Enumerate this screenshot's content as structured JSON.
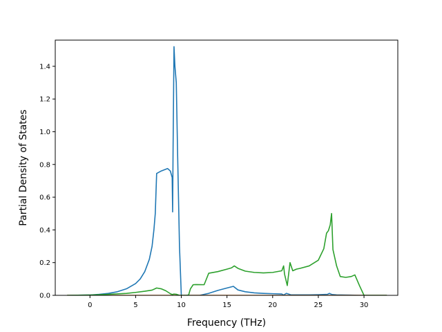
{
  "chart_data": {
    "type": "line",
    "title": "",
    "xlabel": "Frequency (THz)",
    "ylabel": "Partial Density of States",
    "xlim": [
      -3.8,
      33.7
    ],
    "ylim": [
      0,
      1.56
    ],
    "xticks": [
      0,
      5,
      10,
      15,
      20,
      25,
      30
    ],
    "xtick_labels": [
      "0",
      "5",
      "10",
      "15",
      "20",
      "25",
      "30"
    ],
    "yticks": [
      0.0,
      0.2,
      0.4,
      0.6,
      0.8,
      1.0,
      1.2,
      1.4
    ],
    "ytick_labels": [
      "0.0",
      "0.2",
      "0.4",
      "0.6",
      "0.8",
      "1.0",
      "1.2",
      "1.4"
    ],
    "grid": false,
    "legend": "none",
    "series": [
      {
        "color": "#1f77b4",
        "x": [
          -2.5,
          0,
          1,
          2,
          3,
          4,
          5,
          5.5,
          6,
          6.5,
          6.8,
          7.0,
          7.15,
          7.3,
          7.8,
          8.5,
          8.8,
          9.0,
          9.05,
          9.1,
          9.2,
          9.3,
          9.45,
          9.6,
          9.8,
          10.0,
          11,
          12,
          13,
          14,
          15,
          15.7,
          16.2,
          17,
          18,
          19,
          20,
          21,
          21.2,
          21.5,
          22,
          23,
          24,
          25,
          26,
          26.2,
          26.5,
          27,
          28,
          29,
          30,
          32.5
        ],
        "y": [
          0,
          0.002,
          0.006,
          0.012,
          0.022,
          0.04,
          0.072,
          0.1,
          0.145,
          0.22,
          0.3,
          0.4,
          0.5,
          0.745,
          0.76,
          0.775,
          0.76,
          0.72,
          0.51,
          0.9,
          1.52,
          1.4,
          1.3,
          0.85,
          0.3,
          0.0,
          0.0,
          0.0,
          0.012,
          0.03,
          0.045,
          0.055,
          0.033,
          0.022,
          0.015,
          0.012,
          0.01,
          0.008,
          0.002,
          0.012,
          0.003,
          0.003,
          0.003,
          0.004,
          0.006,
          0.012,
          0.005,
          0.003,
          0.002,
          0.001,
          0.0,
          0.0
        ]
      },
      {
        "color": "#ff7f0e",
        "x": [
          -2.5,
          32.5
        ],
        "y": [
          0,
          0
        ]
      },
      {
        "color": "#2ca02c",
        "x": [
          -2.5,
          0,
          2,
          4,
          5,
          6,
          6.8,
          7.3,
          7.8,
          8.3,
          8.8,
          9.0,
          9.2,
          9.5,
          9.8,
          10.5,
          10.8,
          11.0,
          11.3,
          11.6,
          12.5,
          13.0,
          14,
          15,
          15.5,
          15.8,
          16.2,
          17,
          18,
          19,
          20,
          21,
          21.2,
          21.3,
          21.6,
          21.9,
          22.2,
          22.6,
          23,
          24,
          25,
          25.6,
          25.9,
          26.1,
          26.3,
          26.45,
          26.6,
          27,
          27.4,
          28,
          28.6,
          29.0,
          29.5,
          30,
          32.5
        ],
        "y": [
          0,
          0.002,
          0.006,
          0.012,
          0.018,
          0.025,
          0.032,
          0.045,
          0.04,
          0.028,
          0.01,
          0.005,
          0.008,
          0.006,
          0.0,
          0.0,
          0.002,
          0.04,
          0.065,
          0.066,
          0.065,
          0.135,
          0.145,
          0.16,
          0.168,
          0.18,
          0.165,
          0.148,
          0.14,
          0.137,
          0.14,
          0.15,
          0.18,
          0.13,
          0.06,
          0.2,
          0.15,
          0.16,
          0.165,
          0.18,
          0.215,
          0.285,
          0.38,
          0.395,
          0.43,
          0.5,
          0.28,
          0.18,
          0.115,
          0.11,
          0.115,
          0.125,
          0.06,
          0.0,
          0.0
        ]
      }
    ]
  }
}
